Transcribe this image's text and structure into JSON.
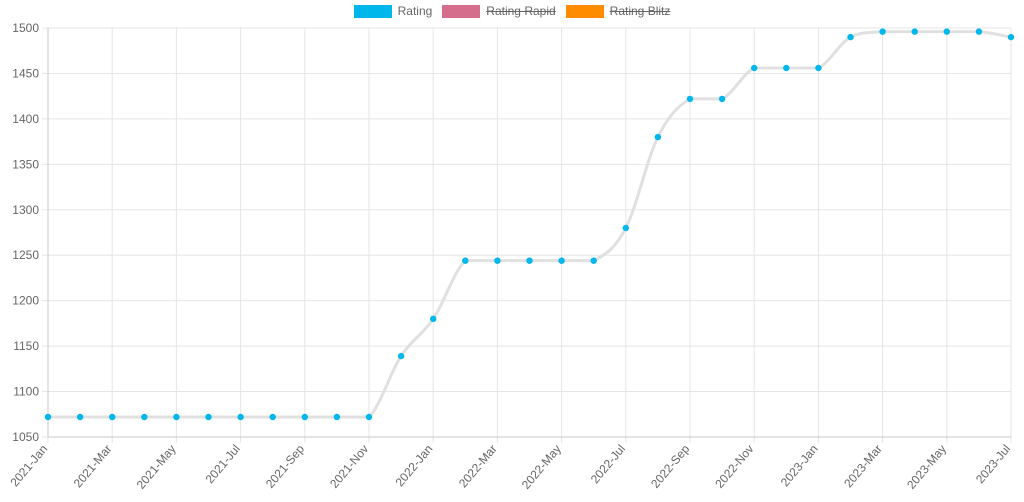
{
  "legend": [
    {
      "label": "Rating",
      "color": "#00b7ec",
      "hidden": false
    },
    {
      "label": "Rating Rapid",
      "color": "#d56d8c",
      "hidden": true
    },
    {
      "label": "Rating Blitz",
      "color": "#ff8c00",
      "hidden": true
    }
  ],
  "chart_data": {
    "type": "line",
    "categories": [
      "2021-Jan",
      "2021-Feb",
      "2021-Mar",
      "2021-Apr",
      "2021-May",
      "2021-Jun",
      "2021-Jul",
      "2021-Aug",
      "2021-Sep",
      "2021-Oct",
      "2021-Nov",
      "2021-Dec",
      "2022-Jan",
      "2022-Feb",
      "2022-Mar",
      "2022-Apr",
      "2022-May",
      "2022-Jun",
      "2022-Jul",
      "2022-Aug",
      "2022-Sep",
      "2022-Oct",
      "2022-Nov",
      "2022-Dec",
      "2023-Jan",
      "2023-Feb",
      "2023-Mar",
      "2023-Apr",
      "2023-May",
      "2023-Jun",
      "2023-Jul"
    ],
    "tick_labels": [
      "2021-Jan",
      "2021-Mar",
      "2021-May",
      "2021-Jul",
      "2021-Sep",
      "2021-Nov",
      "2022-Jan",
      "2022-Mar",
      "2022-May",
      "2022-Jul",
      "2022-Sep",
      "2022-Nov",
      "2023-Jan",
      "2023-Mar",
      "2023-May",
      "2023-Jul"
    ],
    "series": [
      {
        "name": "Rating",
        "color": "#00b7ec",
        "line_color": "#e0e0e0",
        "values": [
          1072,
          1072,
          1072,
          1072,
          1072,
          1072,
          1072,
          1072,
          1072,
          1072,
          1072,
          1139,
          1180,
          1244,
          1244,
          1244,
          1244,
          1244,
          1280,
          1380,
          1422,
          1422,
          1456,
          1456,
          1456,
          1490,
          1496,
          1496,
          1496,
          1496,
          1490
        ]
      }
    ],
    "ylim": [
      1050,
      1500
    ],
    "yticks": [
      1050,
      1100,
      1150,
      1200,
      1250,
      1300,
      1350,
      1400,
      1450,
      1500
    ],
    "grid": true,
    "legend_position": "top"
  }
}
